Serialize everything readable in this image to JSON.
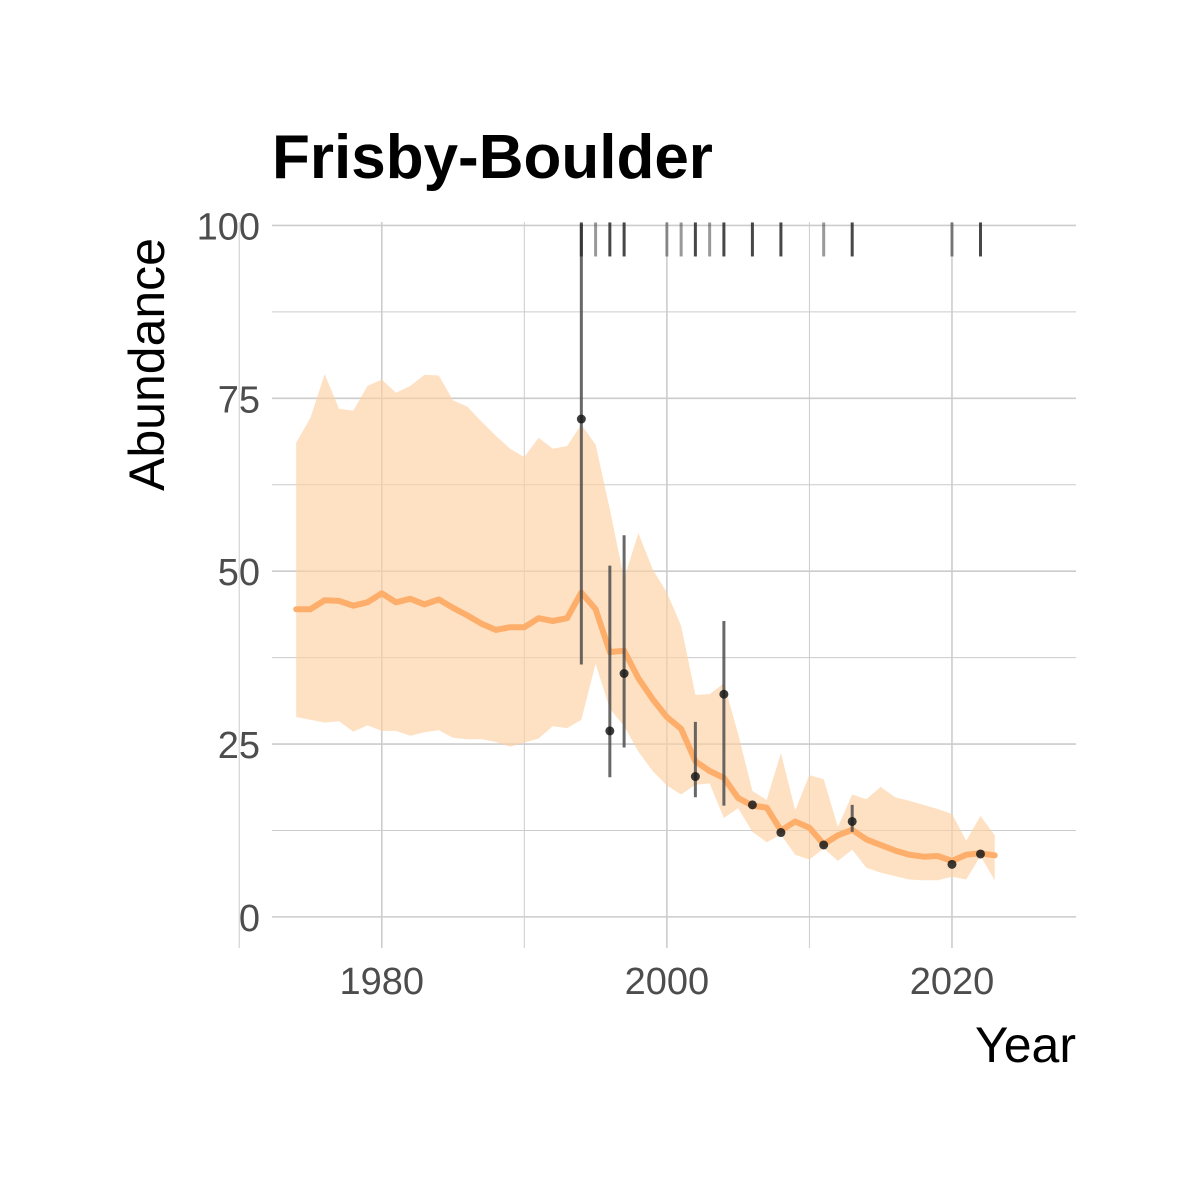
{
  "chart_data": {
    "type": "line",
    "title": "Frisby-Boulder",
    "xlabel": "Year",
    "ylabel": "Abundance",
    "xlim": [
      1972.3,
      2028.7
    ],
    "ylim": [
      -4.5,
      100.5
    ],
    "x_ticks": [
      1980,
      2000,
      2020
    ],
    "x_tick_labels": [
      "1980",
      "2000",
      "2020"
    ],
    "y_ticks": [
      0,
      25,
      50,
      75,
      100
    ],
    "y_tick_labels": [
      "0",
      "25",
      "50",
      "75",
      "100"
    ],
    "grid": true,
    "colors": {
      "line": "#fdae6b",
      "ribbon": "#fdd0a2",
      "points": "#1a1a1a",
      "error_bars": "#4d4d4d",
      "rug": "#333333",
      "grid": "#cccccc"
    },
    "series": [
      {
        "kind": "line_with_ribbon",
        "x": [
          1974,
          1975,
          1976,
          1977,
          1978,
          1979,
          1980,
          1981,
          1982,
          1983,
          1984,
          1985,
          1986,
          1987,
          1988,
          1989,
          1990,
          1991,
          1992,
          1993,
          1994,
          1995,
          1996,
          1997,
          1998,
          1999,
          2000,
          2001,
          2002,
          2003,
          2004,
          2005,
          2006,
          2007,
          2008,
          2009,
          2010,
          2011,
          2012,
          2013,
          2014,
          2015,
          2016,
          2017,
          2018,
          2019,
          2020,
          2021,
          2022,
          2023
        ],
        "y": [
          44.5,
          44.5,
          45.8,
          45.7,
          45,
          45.5,
          46.8,
          45.5,
          46,
          45.2,
          45.9,
          44.7,
          43.6,
          42.4,
          41.5,
          41.9,
          41.9,
          43.2,
          42.8,
          43.2,
          46.9,
          44.5,
          38.3,
          38.5,
          34.5,
          31.5,
          28.9,
          27.2,
          22.5,
          21.1,
          20.1,
          17.2,
          16.1,
          15.8,
          12.5,
          13.8,
          12.9,
          10.5,
          11.8,
          12.6,
          11.2,
          10.4,
          9.6,
          9,
          8.7,
          8.8,
          8.1,
          9,
          9.2,
          8.9
        ],
        "lower": [
          28.9,
          28.5,
          28.1,
          28.3,
          26.8,
          27.7,
          26.9,
          26.9,
          26.2,
          26.7,
          27,
          25.9,
          25.7,
          25.7,
          25.3,
          24.6,
          25.2,
          25.8,
          27.6,
          27.3,
          28.5,
          36.6,
          30.1,
          27.6,
          23.9,
          21.1,
          19,
          17.7,
          19.1,
          19.3,
          14.3,
          15.7,
          12.3,
          10.8,
          11.9,
          9,
          8.3,
          9.9,
          8.1,
          9.7,
          7.1,
          6.4,
          5.9,
          5.4,
          5.3,
          5.3,
          5.8,
          5.4,
          8.8,
          5.3
        ],
        "upper": [
          68.6,
          72.2,
          78.5,
          73.5,
          73.2,
          76.8,
          77.7,
          75.8,
          76.8,
          78.4,
          78.3,
          74.7,
          73.8,
          71.6,
          69.6,
          67.7,
          66.5,
          69.3,
          67.7,
          68.1,
          71.2,
          68.3,
          58.9,
          48.9,
          55.5,
          50.3,
          46.9,
          42.1,
          32.1,
          32.2,
          33.8,
          26.5,
          18.2,
          16.9,
          23.7,
          15.4,
          20.5,
          19.9,
          13,
          17.7,
          17,
          18.8,
          17.3,
          16.8,
          16.2,
          15.6,
          14.9,
          11,
          14.6,
          11.8
        ]
      }
    ],
    "observations": [
      {
        "x": 1994,
        "y": 72,
        "lower": 36.5,
        "upper": 100.2
      },
      {
        "x": 1996,
        "y": 26.9,
        "lower": 20.2,
        "upper": 50.8
      },
      {
        "x": 1997,
        "y": 35.2,
        "lower": 24.5,
        "upper": 55.2
      },
      {
        "x": 2002,
        "y": 20.3,
        "lower": 17.3,
        "upper": 28.2
      },
      {
        "x": 2004,
        "y": 32.2,
        "lower": 16.1,
        "upper": 42.8
      },
      {
        "x": 2006,
        "y": 16.2,
        "lower": null,
        "upper": null
      },
      {
        "x": 2008,
        "y": 12.2,
        "lower": null,
        "upper": null
      },
      {
        "x": 2011,
        "y": 10.4,
        "lower": null,
        "upper": null
      },
      {
        "x": 2013,
        "y": 13.8,
        "lower": 12.3,
        "upper": 16.2
      },
      {
        "x": 2020,
        "y": 7.6,
        "lower": null,
        "upper": null
      },
      {
        "x": 2022,
        "y": 9.1,
        "lower": null,
        "upper": null
      }
    ],
    "rug": {
      "x": [
        1994,
        1995,
        1996,
        1997,
        2000,
        2001,
        2002,
        2003,
        2004,
        2006,
        2008,
        2011,
        2013,
        2020,
        2022
      ],
      "opacity": [
        0.9,
        0.5,
        0.9,
        0.9,
        0.5,
        0.5,
        0.9,
        0.5,
        0.9,
        0.9,
        0.9,
        0.5,
        0.9,
        0.6,
        0.9
      ]
    }
  }
}
